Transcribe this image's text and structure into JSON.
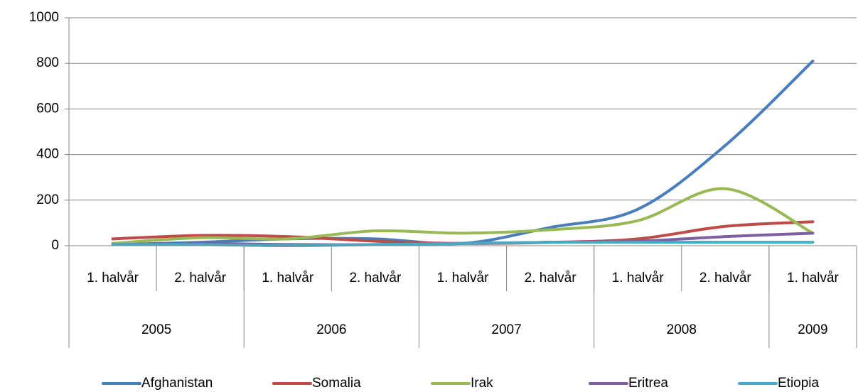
{
  "chart_data": {
    "type": "line",
    "categories": [
      "1. halvår",
      "2. halvår",
      "1. halvår",
      "2. halvår",
      "1. halvår",
      "2. halvår",
      "1. halvår",
      "2. halvår",
      "1. halvår"
    ],
    "groups": [
      {
        "label": "2005",
        "span": 2
      },
      {
        "label": "2006",
        "span": 2
      },
      {
        "label": "2007",
        "span": 2
      },
      {
        "label": "2008",
        "span": 2
      },
      {
        "label": "2009",
        "span": 1
      }
    ],
    "series": [
      {
        "name": "Afghanistan",
        "color": "#4a7ebb",
        "values": [
          5,
          15,
          30,
          30,
          10,
          80,
          160,
          440,
          810
        ]
      },
      {
        "name": "Somalia",
        "color": "#be4b48",
        "values": [
          30,
          45,
          40,
          20,
          10,
          15,
          30,
          85,
          105
        ]
      },
      {
        "name": "Irak",
        "color": "#98b954",
        "values": [
          10,
          35,
          30,
          65,
          55,
          70,
          110,
          250,
          55
        ]
      },
      {
        "name": "Eritrea",
        "color": "#7d60a0",
        "values": [
          5,
          10,
          5,
          5,
          10,
          15,
          20,
          40,
          55
        ]
      },
      {
        "name": "Etiopia",
        "color": "#46aac5",
        "values": [
          5,
          5,
          0,
          5,
          10,
          15,
          15,
          15,
          15
        ]
      }
    ],
    "ylim": [
      0,
      1000
    ],
    "yticks": [
      0,
      200,
      400,
      600,
      800,
      1000
    ],
    "grid": true,
    "smooth": true,
    "legend": "bottom"
  }
}
